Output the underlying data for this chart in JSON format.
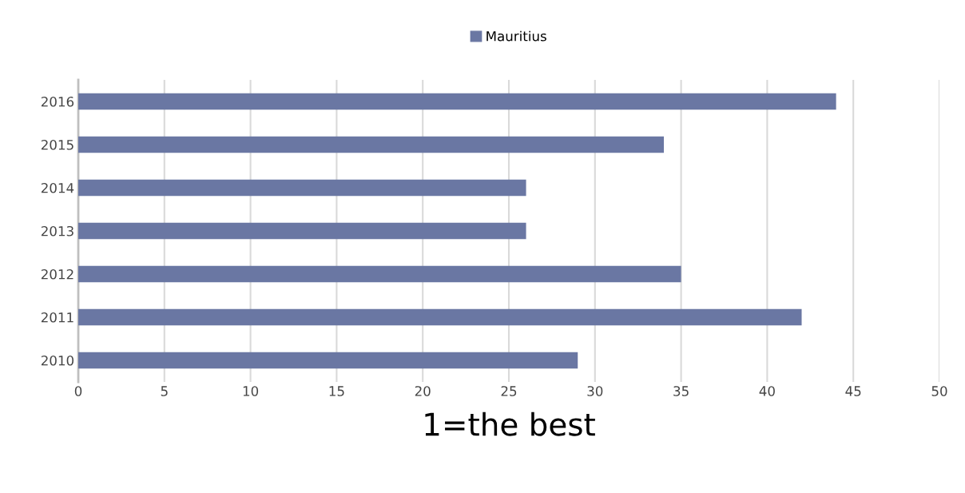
{
  "chart_data": {
    "type": "bar",
    "orientation": "horizontal",
    "xlabel": "1=the best",
    "categories": [
      "2016",
      "2015",
      "2014",
      "2013",
      "2012",
      "2011",
      "2010"
    ],
    "series": [
      {
        "name": "Mauritius",
        "color": "#6a77a3",
        "values": [
          44,
          34,
          26,
          26,
          35,
          42,
          29
        ]
      }
    ],
    "xlim": [
      0,
      50
    ],
    "xticks": [
      0,
      5,
      10,
      15,
      20,
      25,
      30,
      35,
      40,
      45,
      50
    ],
    "grid": "x",
    "legend": "top"
  }
}
